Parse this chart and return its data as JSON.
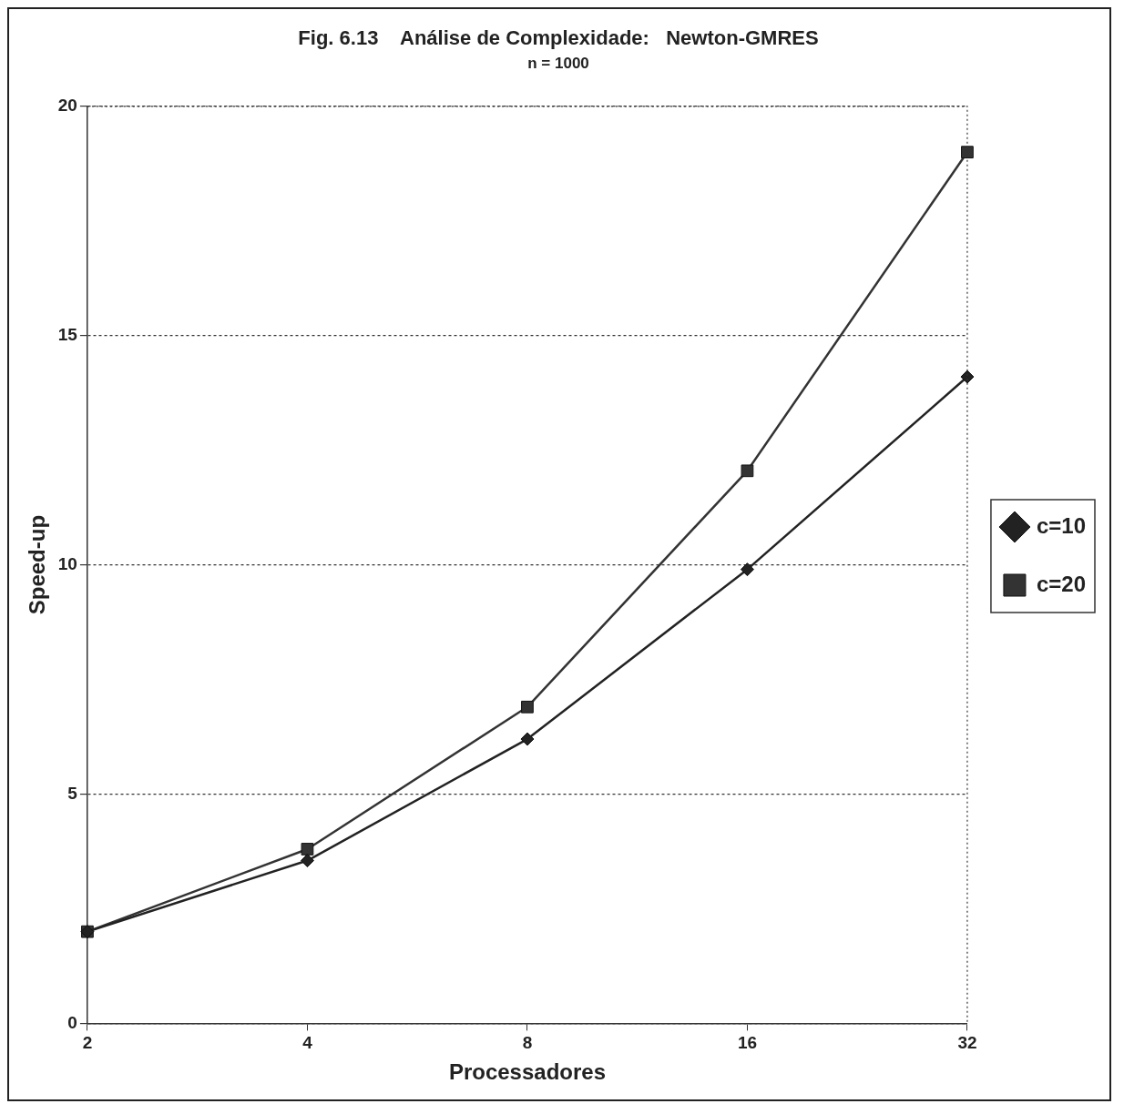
{
  "chart_data": {
    "type": "line",
    "title": "Fig. 6.13    Análise de Complexidade:   Newton-GMRES",
    "subtitle": "n = 1000",
    "xlabel": "Processadores",
    "ylabel": "Speed-up",
    "categories": [
      "2",
      "4",
      "8",
      "16",
      "32"
    ],
    "series": [
      {
        "name": "c=10",
        "color": "#222222",
        "marker": "diamond",
        "values": [
          2.0,
          3.55,
          6.2,
          9.9,
          14.1
        ]
      },
      {
        "name": "c=20",
        "color": "#333333",
        "marker": "square",
        "values": [
          2.0,
          3.8,
          6.9,
          12.05,
          19.0
        ]
      }
    ],
    "ylim": [
      0,
      20
    ],
    "yticks": [
      0,
      5,
      10,
      15,
      20
    ],
    "grid": "y",
    "legend": "right",
    "line_style": "solid"
  }
}
